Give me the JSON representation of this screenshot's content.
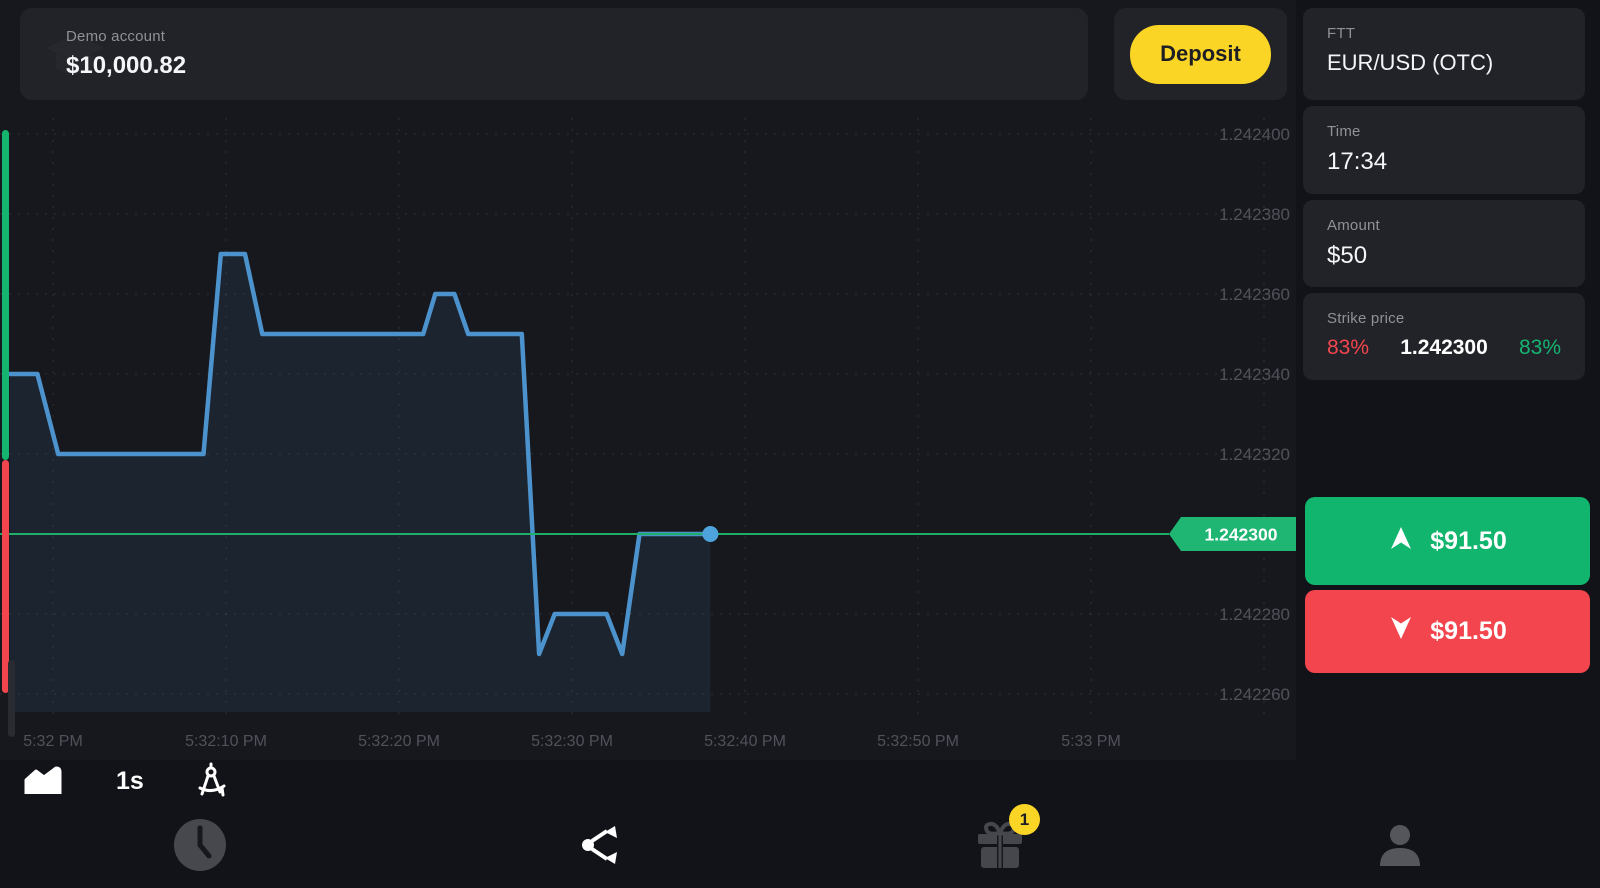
{
  "header": {
    "account_type": "Demo account",
    "balance": "$10,000.82",
    "deposit_label": "Deposit"
  },
  "symbol": {
    "type_label": "FTT",
    "name": "EUR/USD (OTC)"
  },
  "trade_panel": {
    "time_label": "Time",
    "time_value": "17:34",
    "amount_label": "Amount",
    "amount_value": "$50",
    "strike_label": "Strike price",
    "strike_payout_down": "83%",
    "strike_value": "1.242300",
    "strike_payout_up": "83%",
    "buy_up_amount": "$91.50",
    "buy_down_amount": "$91.50"
  },
  "toolbar": {
    "timeframe_label": "1s"
  },
  "nav": {
    "gift_badge_count": "1"
  },
  "colors": {
    "up_green": "#12b56d",
    "down_red": "#f2454d",
    "strike_green": "#1fae68",
    "tag_green": "#1fb572",
    "line_blue": "#4c93cd",
    "dot_blue": "#4fa3dd",
    "grid": "rgba(255,255,255,0.07)",
    "axis_text": "#50525b",
    "fill_blue": "rgba(77,148,208,0.10)",
    "deposit_yellow": "#fbd525"
  },
  "chart_data": {
    "type": "area",
    "title": "EUR/USD (OTC) 1s price chart",
    "legend": "none",
    "grid": "on",
    "ylim": [
      1.24225,
      1.24241
    ],
    "y_ticks": [
      {
        "price": 1.2424,
        "label": "1.242400"
      },
      {
        "price": 1.24238,
        "label": "1.242380"
      },
      {
        "price": 1.24236,
        "label": "1.242360"
      },
      {
        "price": 1.24234,
        "label": "1.242340"
      },
      {
        "price": 1.24232,
        "label": "1.242320"
      },
      {
        "price": 1.2423,
        "label": "1.242300"
      },
      {
        "price": 1.24228,
        "label": "1.242280"
      },
      {
        "price": 1.24226,
        "label": "1.242260"
      }
    ],
    "x_ticks": [
      {
        "t": 0,
        "label": "5:32 PM"
      },
      {
        "t": 10,
        "label": "5:32:10 PM"
      },
      {
        "t": 20,
        "label": "5:32:20 PM"
      },
      {
        "t": 30,
        "label": "5:32:30 PM"
      },
      {
        "t": 40,
        "label": "5:32:40 PM"
      },
      {
        "t": 50,
        "label": "5:32:50 PM"
      },
      {
        "t": 60,
        "label": "5:33 PM"
      },
      {
        "t": 70,
        "label": ""
      }
    ],
    "series": [
      {
        "name": "EUR/USD (OTC)",
        "points": [
          [
            -2.5,
            1.24234
          ],
          [
            -0.9,
            1.24234
          ],
          [
            0.3,
            1.24232
          ],
          [
            8.7,
            1.24232
          ],
          [
            9.7,
            1.24237
          ],
          [
            11.1,
            1.24237
          ],
          [
            12.1,
            1.24235
          ],
          [
            21.4,
            1.24235
          ],
          [
            22.1,
            1.24236
          ],
          [
            23.2,
            1.24236
          ],
          [
            24.0,
            1.24235
          ],
          [
            27.1,
            1.24235
          ],
          [
            28.1,
            1.24227
          ],
          [
            29.0,
            1.24228
          ],
          [
            32.0,
            1.24228
          ],
          [
            32.9,
            1.24227
          ],
          [
            33.9,
            1.2423
          ],
          [
            38.0,
            1.2423
          ]
        ]
      }
    ],
    "strike": {
      "price": 1.2423,
      "label": "1.242300"
    },
    "current": {
      "t": 38.0,
      "price": 1.2423
    }
  }
}
